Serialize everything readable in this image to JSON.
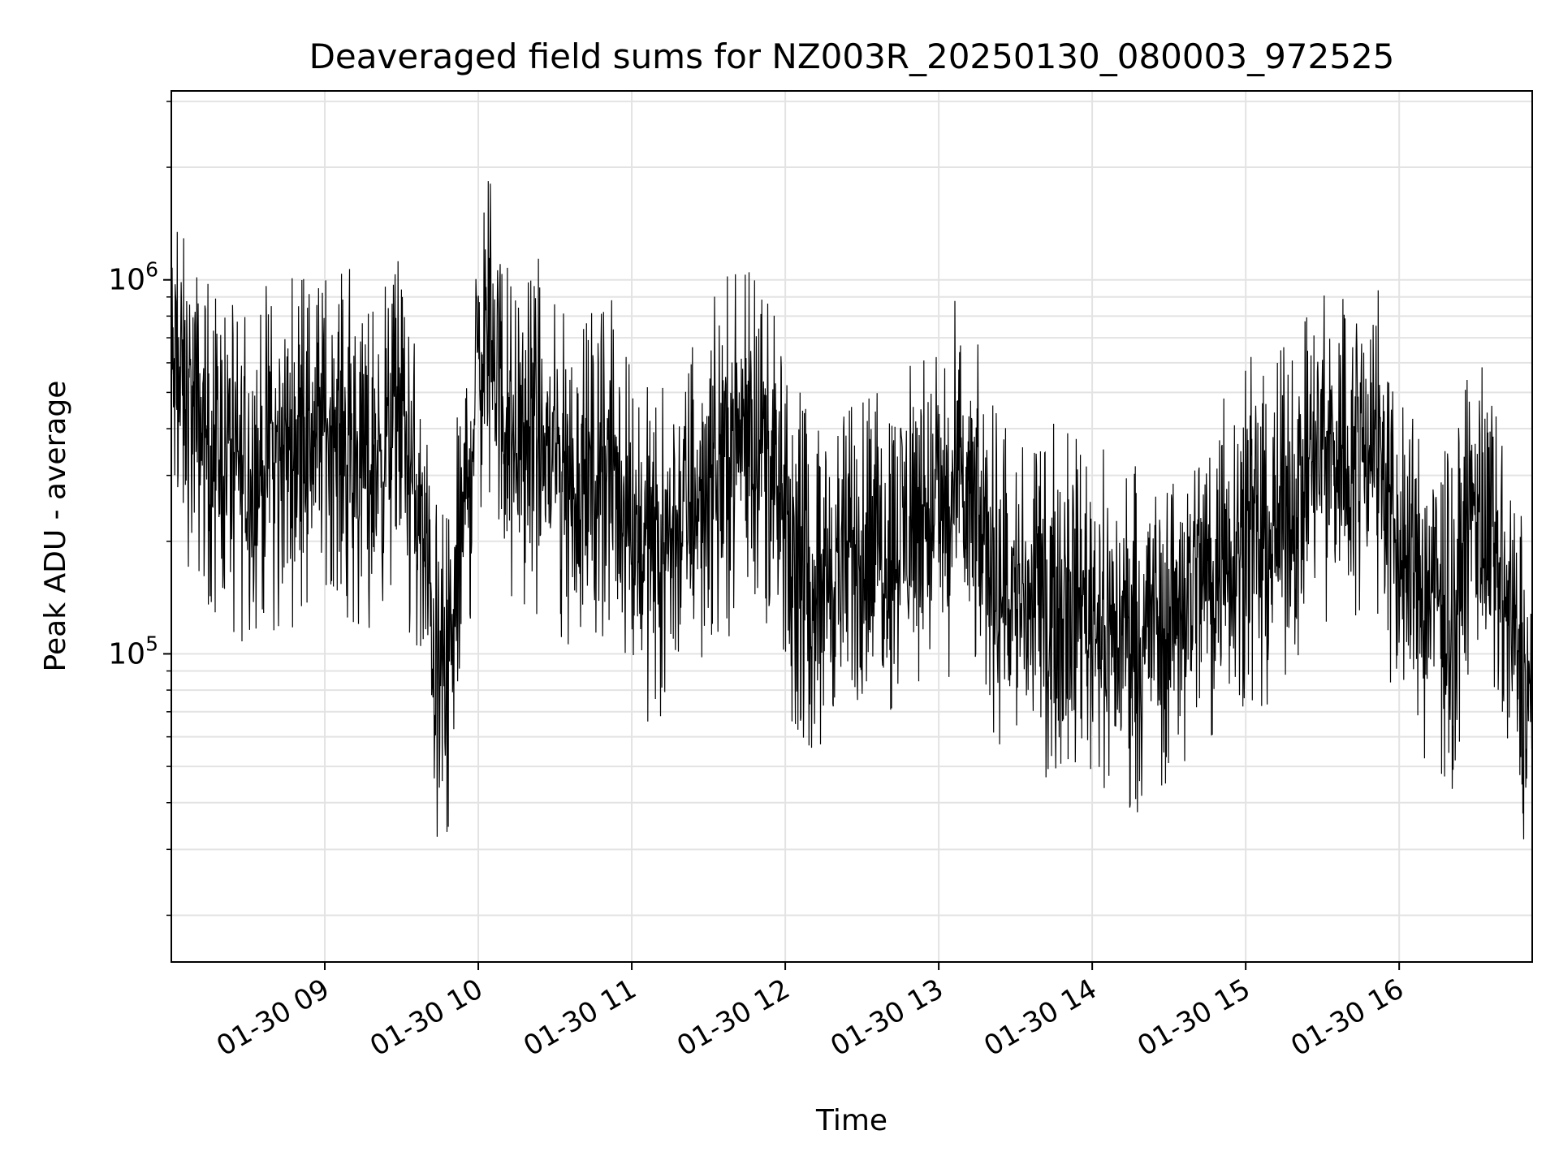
{
  "chart_data": {
    "type": "line",
    "title": "Deaveraged field sums for NZ003R_20250130_080003_972525",
    "xlabel": "Time",
    "ylabel": "Peak ADU - average",
    "x_range": [
      "2025-01-30 08:00",
      "2025-01-30 16:52"
    ],
    "yscale": "log",
    "ylim": [
      15000,
      3200000
    ],
    "grid": true,
    "legend": "none",
    "line_color": "#000000",
    "x_ticks": [
      "01-30 09",
      "01-30 10",
      "01-30 11",
      "01-30 12",
      "01-30 13",
      "01-30 14",
      "01-30 15",
      "01-30 16"
    ],
    "y_ticks": [
      {
        "base": "10",
        "exp": "5",
        "value": 100000
      },
      {
        "base": "10",
        "exp": "6",
        "value": 1000000
      }
    ],
    "series_x": [
      "2025-01-30 08:00",
      "2025-01-30 08:10",
      "2025-01-30 08:20",
      "2025-01-30 08:30",
      "2025-01-30 08:40",
      "2025-01-30 08:50",
      "2025-01-30 09:00",
      "2025-01-30 09:10",
      "2025-01-30 09:20",
      "2025-01-30 09:30",
      "2025-01-30 09:40",
      "2025-01-30 09:45",
      "2025-01-30 09:50",
      "2025-01-30 10:00",
      "2025-01-30 10:05",
      "2025-01-30 10:10",
      "2025-01-30 10:20",
      "2025-01-30 10:30",
      "2025-01-30 10:40",
      "2025-01-30 10:50",
      "2025-01-30 11:00",
      "2025-01-30 11:10",
      "2025-01-30 11:20",
      "2025-01-30 11:30",
      "2025-01-30 11:40",
      "2025-01-30 11:50",
      "2025-01-30 12:00",
      "2025-01-30 12:10",
      "2025-01-30 12:20",
      "2025-01-30 12:30",
      "2025-01-30 12:40",
      "2025-01-30 12:50",
      "2025-01-30 13:00",
      "2025-01-30 13:10",
      "2025-01-30 13:20",
      "2025-01-30 13:30",
      "2025-01-30 13:40",
      "2025-01-30 13:50",
      "2025-01-30 14:00",
      "2025-01-30 14:10",
      "2025-01-30 14:20",
      "2025-01-30 14:30",
      "2025-01-30 14:40",
      "2025-01-30 14:50",
      "2025-01-30 15:00",
      "2025-01-30 15:10",
      "2025-01-30 15:20",
      "2025-01-30 15:30",
      "2025-01-30 15:40",
      "2025-01-30 15:50",
      "2025-01-30 16:00",
      "2025-01-30 16:10",
      "2025-01-30 16:20",
      "2025-01-30 16:30",
      "2025-01-30 16:40",
      "2025-01-30 16:52"
    ],
    "series_y": [
      550000,
      420000,
      350000,
      300000,
      330000,
      380000,
      420000,
      350000,
      330000,
      450000,
      160000,
      80000,
      110000,
      600000,
      800000,
      420000,
      380000,
      330000,
      280000,
      320000,
      220000,
      190000,
      230000,
      300000,
      380000,
      420000,
      200000,
      160000,
      170000,
      180000,
      200000,
      230000,
      240000,
      260000,
      180000,
      140000,
      130000,
      150000,
      140000,
      110000,
      120000,
      130000,
      160000,
      180000,
      220000,
      200000,
      280000,
      350000,
      340000,
      420000,
      180000,
      150000,
      130000,
      260000,
      140000,
      70000
    ]
  }
}
